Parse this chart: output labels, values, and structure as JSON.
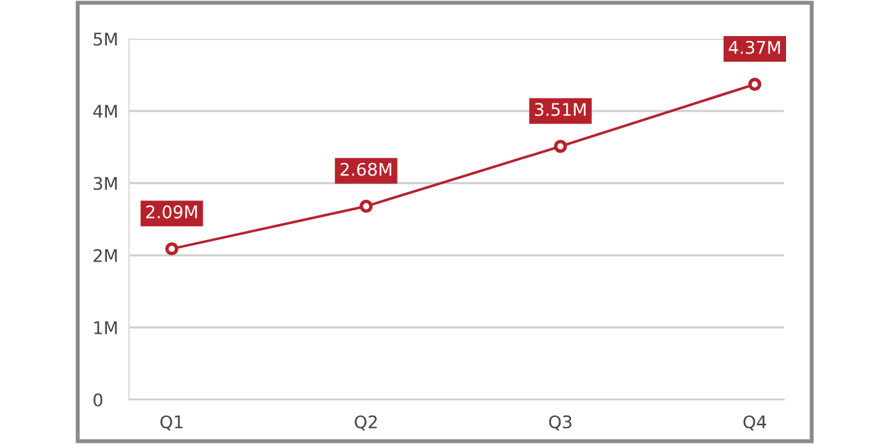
{
  "chart_data": {
    "type": "line",
    "categories": [
      "Q1",
      "Q2",
      "Q3",
      "Q4"
    ],
    "series": [
      {
        "color": "#b5222b",
        "values": [
          2.09,
          2.68,
          3.51,
          4.37
        ],
        "value_labels": [
          "2.09M",
          "2.68M",
          "3.51M",
          "4.37M"
        ]
      }
    ],
    "ylim": [
      0,
      5
    ],
    "yticks": [
      0,
      {
        "value": 1,
        "label": "1M"
      },
      {
        "value": 2,
        "label": "2M"
      },
      {
        "value": 3,
        "label": "3M"
      },
      {
        "value": 4,
        "label": "4M"
      },
      {
        "value": 5,
        "label": "5M"
      }
    ],
    "grid": "y",
    "marker": "circle",
    "line_style": "solid",
    "legend": false
  }
}
